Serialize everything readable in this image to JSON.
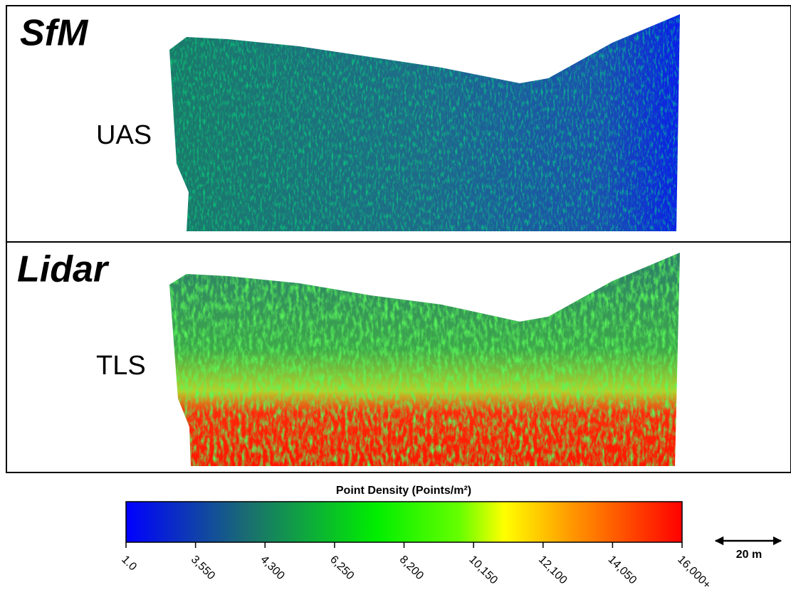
{
  "panels": [
    {
      "method": "SfM",
      "platform": "UAS"
    },
    {
      "method": "Lidar",
      "platform": "TLS"
    }
  ],
  "colorbar": {
    "title": "Point Density (Points/m²)",
    "tick_labels": [
      "1.0",
      "3,550",
      "4,300",
      "6,250",
      "8,200",
      "10,150",
      "12,100",
      "14,050",
      "16,000+"
    ]
  },
  "scale_bar": {
    "label": "20 m"
  }
}
